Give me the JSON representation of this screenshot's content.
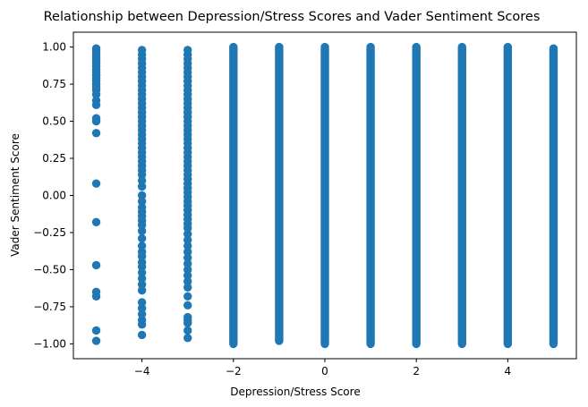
{
  "chart_data": {
    "type": "scatter",
    "title": "Relationship between Depression/Stress Scores and Vader Sentiment Scores",
    "xlabel": "Depression/Stress Score",
    "ylabel": "Vader Sentiment Score",
    "xlim": [
      -5.5,
      5.5
    ],
    "ylim": [
      -1.1,
      1.1
    ],
    "xticks": [
      -4,
      -2,
      0,
      2,
      4
    ],
    "xtick_labels": [
      "−4",
      "−2",
      "0",
      "2",
      "4"
    ],
    "yticks": [
      -1.0,
      -0.75,
      -0.5,
      -0.25,
      0.0,
      0.25,
      0.5,
      0.75,
      1.0
    ],
    "ytick_labels": [
      "−1.00",
      "−0.75",
      "−0.50",
      "−0.25",
      "0.00",
      "0.25",
      "0.50",
      "0.75",
      "1.00"
    ],
    "grid": false,
    "marker_color": "#1f77b4",
    "series": [
      {
        "points": [
          [
            -5,
            0.99
          ],
          [
            -5,
            0.97
          ],
          [
            -5,
            0.95
          ],
          [
            -5,
            0.93
          ],
          [
            -5,
            0.91
          ],
          [
            -5,
            0.89
          ],
          [
            -5,
            0.87
          ],
          [
            -5,
            0.85
          ],
          [
            -5,
            0.83
          ],
          [
            -5,
            0.81
          ],
          [
            -5,
            0.79
          ],
          [
            -5,
            0.77
          ],
          [
            -5,
            0.75
          ],
          [
            -5,
            0.73
          ],
          [
            -5,
            0.71
          ],
          [
            -5,
            0.68
          ],
          [
            -5,
            0.64
          ],
          [
            -5,
            0.61
          ],
          [
            -5,
            0.52
          ],
          [
            -5,
            0.5
          ],
          [
            -5,
            0.42
          ],
          [
            -5,
            0.08
          ],
          [
            -5,
            -0.18
          ],
          [
            -5,
            -0.47
          ],
          [
            -5,
            -0.65
          ],
          [
            -5,
            -0.68
          ],
          [
            -5,
            -0.91
          ],
          [
            -5,
            -0.98
          ],
          [
            -4,
            0.98
          ],
          [
            -4,
            0.95
          ],
          [
            -4,
            0.92
          ],
          [
            -4,
            0.89
          ],
          [
            -4,
            0.86
          ],
          [
            -4,
            0.83
          ],
          [
            -4,
            0.8
          ],
          [
            -4,
            0.77
          ],
          [
            -4,
            0.74
          ],
          [
            -4,
            0.71
          ],
          [
            -4,
            0.68
          ],
          [
            -4,
            0.65
          ],
          [
            -4,
            0.62
          ],
          [
            -4,
            0.59
          ],
          [
            -4,
            0.56
          ],
          [
            -4,
            0.53
          ],
          [
            -4,
            0.5
          ],
          [
            -4,
            0.47
          ],
          [
            -4,
            0.44
          ],
          [
            -4,
            0.41
          ],
          [
            -4,
            0.38
          ],
          [
            -4,
            0.35
          ],
          [
            -4,
            0.32
          ],
          [
            -4,
            0.29
          ],
          [
            -4,
            0.26
          ],
          [
            -4,
            0.23
          ],
          [
            -4,
            0.2
          ],
          [
            -4,
            0.17
          ],
          [
            -4,
            0.14
          ],
          [
            -4,
            0.1
          ],
          [
            -4,
            0.06
          ],
          [
            -4,
            0.0
          ],
          [
            -4,
            -0.04
          ],
          [
            -4,
            -0.08
          ],
          [
            -4,
            -0.11
          ],
          [
            -4,
            -0.14
          ],
          [
            -4,
            -0.17
          ],
          [
            -4,
            -0.2
          ],
          [
            -4,
            -0.24
          ],
          [
            -4,
            -0.29
          ],
          [
            -4,
            -0.34
          ],
          [
            -4,
            -0.38
          ],
          [
            -4,
            -0.41
          ],
          [
            -4,
            -0.45
          ],
          [
            -4,
            -0.48
          ],
          [
            -4,
            -0.52
          ],
          [
            -4,
            -0.56
          ],
          [
            -4,
            -0.6
          ],
          [
            -4,
            -0.64
          ],
          [
            -4,
            -0.72
          ],
          [
            -4,
            -0.76
          ],
          [
            -4,
            -0.8
          ],
          [
            -4,
            -0.84
          ],
          [
            -4,
            -0.87
          ],
          [
            -4,
            -0.94
          ],
          [
            -3,
            0.98
          ],
          [
            -3,
            0.95
          ],
          [
            -3,
            0.92
          ],
          [
            -3,
            0.89
          ],
          [
            -3,
            0.86
          ],
          [
            -3,
            0.83
          ],
          [
            -3,
            0.8
          ],
          [
            -3,
            0.77
          ],
          [
            -3,
            0.74
          ],
          [
            -3,
            0.71
          ],
          [
            -3,
            0.68
          ],
          [
            -3,
            0.65
          ],
          [
            -3,
            0.62
          ],
          [
            -3,
            0.59
          ],
          [
            -3,
            0.56
          ],
          [
            -3,
            0.53
          ],
          [
            -3,
            0.5
          ],
          [
            -3,
            0.47
          ],
          [
            -3,
            0.44
          ],
          [
            -3,
            0.41
          ],
          [
            -3,
            0.38
          ],
          [
            -3,
            0.35
          ],
          [
            -3,
            0.32
          ],
          [
            -3,
            0.29
          ],
          [
            -3,
            0.26
          ],
          [
            -3,
            0.23
          ],
          [
            -3,
            0.2
          ],
          [
            -3,
            0.17
          ],
          [
            -3,
            0.14
          ],
          [
            -3,
            0.11
          ],
          [
            -3,
            0.08
          ],
          [
            -3,
            0.05
          ],
          [
            -3,
            0.02
          ],
          [
            -3,
            -0.01
          ],
          [
            -3,
            -0.04
          ],
          [
            -3,
            -0.07
          ],
          [
            -3,
            -0.1
          ],
          [
            -3,
            -0.13
          ],
          [
            -3,
            -0.16
          ],
          [
            -3,
            -0.19
          ],
          [
            -3,
            -0.22
          ],
          [
            -3,
            -0.26
          ],
          [
            -3,
            -0.3
          ],
          [
            -3,
            -0.34
          ],
          [
            -3,
            -0.38
          ],
          [
            -3,
            -0.42
          ],
          [
            -3,
            -0.46
          ],
          [
            -3,
            -0.5
          ],
          [
            -3,
            -0.54
          ],
          [
            -3,
            -0.58
          ],
          [
            -3,
            -0.62
          ],
          [
            -3,
            -0.68
          ],
          [
            -3,
            -0.74
          ],
          [
            -3,
            -0.82
          ],
          [
            -3,
            -0.84
          ],
          [
            -3,
            -0.86
          ],
          [
            -3,
            -0.91
          ],
          [
            -3,
            -0.96
          ],
          [
            -2,
            1.0
          ],
          [
            -2,
            -1.0
          ],
          [
            -1,
            1.0
          ],
          [
            -1,
            -0.98
          ],
          [
            0,
            1.0
          ],
          [
            0,
            -1.0
          ],
          [
            1,
            1.0
          ],
          [
            1,
            -1.0
          ],
          [
            2,
            1.0
          ],
          [
            2,
            -1.0
          ],
          [
            3,
            1.0
          ],
          [
            3,
            -1.0
          ],
          [
            4,
            1.0
          ],
          [
            4,
            -1.0
          ],
          [
            5,
            0.99
          ],
          [
            5,
            -1.0
          ]
        ]
      }
    ],
    "continuous_columns": [
      {
        "x": -2,
        "y_range": [
          -0.99,
          0.99
        ]
      },
      {
        "x": -1,
        "y_range": [
          -0.97,
          0.99
        ]
      },
      {
        "x": 0,
        "y_range": [
          -0.99,
          0.99
        ]
      },
      {
        "x": 1,
        "y_range": [
          -0.99,
          0.99
        ]
      },
      {
        "x": 2,
        "y_range": [
          -0.99,
          0.99
        ]
      },
      {
        "x": 3,
        "y_range": [
          -0.99,
          0.99
        ]
      },
      {
        "x": 4,
        "y_range": [
          -0.99,
          0.99
        ]
      },
      {
        "x": 5,
        "y_range": [
          -0.99,
          0.98
        ]
      }
    ]
  }
}
